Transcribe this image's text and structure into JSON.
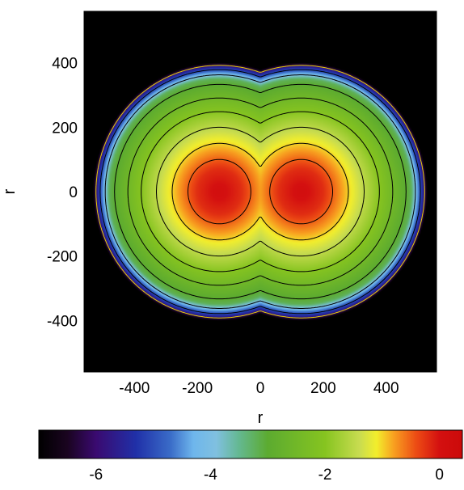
{
  "chart_data": {
    "type": "heatmap",
    "title": "",
    "xlabel": "r",
    "ylabel": "r",
    "xlim": [
      -560,
      560
    ],
    "ylim": [
      -560,
      560
    ],
    "x_ticks": [
      -400,
      -200,
      0,
      200,
      400
    ],
    "y_ticks": [
      400,
      200,
      0,
      -200,
      -400
    ],
    "x_tick_labels": [
      "-400",
      "-200",
      "0",
      "200",
      "400"
    ],
    "y_tick_labels": [
      "400",
      "200",
      "0",
      "-200",
      "-400"
    ],
    "field": {
      "description_of_shape": "two overlapping lobes centered on the horizontal axis",
      "lobe_centers_x": [
        -130,
        130
      ],
      "peak_value": 0.1,
      "background_value": -7
    },
    "contour_levels": [
      -6,
      -5,
      -4,
      -3,
      -2.5,
      -2,
      -1.5,
      -1,
      -0.5
    ],
    "colorbar": {
      "range": [
        -7,
        0.4
      ],
      "tick_values": [
        -6,
        -4,
        -2,
        0
      ],
      "tick_labels": [
        "-6",
        "-4",
        "-2",
        "0"
      ],
      "colormap_stops": [
        {
          "v": -7.0,
          "color": "#000000"
        },
        {
          "v": -6.5,
          "color": "#1a0420"
        },
        {
          "v": -6.0,
          "color": "#3a0a70"
        },
        {
          "v": -5.3,
          "color": "#2030a8"
        },
        {
          "v": -4.7,
          "color": "#3a6cc8"
        },
        {
          "v": -4.3,
          "color": "#6eb6ec"
        },
        {
          "v": -3.9,
          "color": "#80c0e0"
        },
        {
          "v": -3.5,
          "color": "#64b890"
        },
        {
          "v": -3.0,
          "color": "#5cab30"
        },
        {
          "v": -2.0,
          "color": "#86c420"
        },
        {
          "v": -1.4,
          "color": "#c8dc50"
        },
        {
          "v": -1.1,
          "color": "#f2ee2c"
        },
        {
          "v": -0.8,
          "color": "#f8a020"
        },
        {
          "v": -0.4,
          "color": "#ec4a14"
        },
        {
          "v": 0.0,
          "color": "#d41010"
        },
        {
          "v": 0.4,
          "color": "#cc0a0a"
        }
      ]
    },
    "colors": {
      "background": "#000000",
      "contour_line": "#000000",
      "outer_contour_line": "#e8d000"
    }
  }
}
